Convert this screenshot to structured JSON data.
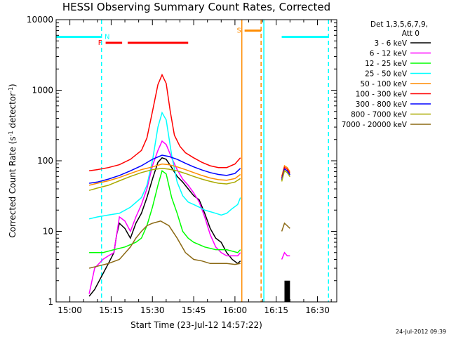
{
  "chart_data": {
    "type": "line",
    "title": "HESSI Observing Summary Count Rates, Corrected",
    "xlabel": "Start Time (23-Jul-12 14:57:22)",
    "ylabel_parts": [
      "Corrected Count Rate (s",
      "-1",
      " detector",
      "-1",
      ")"
    ],
    "x_ticks": [
      "15:00",
      "15:15",
      "15:30",
      "15:45",
      "16:00",
      "16:15",
      "16:30"
    ],
    "x_tick_minutes": [
      0,
      15,
      30,
      45,
      60,
      75,
      90
    ],
    "xlim_minutes": [
      -5,
      97
    ],
    "y_ticks": [
      "10000",
      "1000",
      "100",
      "10",
      "1"
    ],
    "y_tick_values": [
      10000,
      1000,
      100,
      10,
      1
    ],
    "ylim": [
      1,
      10000
    ],
    "yscale": "log",
    "legend_header": [
      "Det 1,3,5,6,7,9,",
      "Att 0"
    ],
    "legend_position": "right",
    "timestamp": "24-Jul-2012 09:39",
    "series": [
      {
        "name": "3 - 6 keV",
        "color": "#000000",
        "points": [
          [
            7,
            1.2
          ],
          [
            9,
            1.5
          ],
          [
            12,
            2.5
          ],
          [
            14,
            3.5
          ],
          [
            16,
            5
          ],
          [
            17,
            9
          ],
          [
            18,
            13
          ],
          [
            20,
            11
          ],
          [
            22,
            8
          ],
          [
            24,
            13
          ],
          [
            26,
            18
          ],
          [
            28,
            30
          ],
          [
            30,
            55
          ],
          [
            32,
            95
          ],
          [
            33.5,
            110
          ],
          [
            35,
            105
          ],
          [
            37,
            80
          ],
          [
            39,
            60
          ],
          [
            41,
            50
          ],
          [
            43,
            40
          ],
          [
            45,
            32
          ],
          [
            47,
            28
          ],
          [
            49,
            18
          ],
          [
            51,
            11
          ],
          [
            53,
            8
          ],
          [
            55,
            7
          ],
          [
            57,
            5
          ],
          [
            59,
            4
          ],
          [
            61,
            3.5
          ],
          [
            62,
            3.8
          ]
        ]
      },
      {
        "name": "6 - 12 keV",
        "color": "#ff00ff",
        "points": [
          [
            7,
            1.3
          ],
          [
            9,
            3
          ],
          [
            12,
            4
          ],
          [
            14,
            4.5
          ],
          [
            16,
            5
          ],
          [
            17,
            9
          ],
          [
            18,
            16
          ],
          [
            20,
            14
          ],
          [
            22,
            10
          ],
          [
            24,
            16
          ],
          [
            26,
            24
          ],
          [
            28,
            40
          ],
          [
            30,
            85
          ],
          [
            32,
            140
          ],
          [
            33.5,
            190
          ],
          [
            35,
            170
          ],
          [
            37,
            110
          ],
          [
            39,
            75
          ],
          [
            41,
            55
          ],
          [
            43,
            45
          ],
          [
            45,
            35
          ],
          [
            47,
            26
          ],
          [
            49,
            16
          ],
          [
            51,
            9
          ],
          [
            53,
            6
          ],
          [
            55,
            5
          ],
          [
            57,
            4.5
          ],
          [
            59,
            4.5
          ],
          [
            61,
            4.5
          ],
          [
            62,
            5
          ]
        ]
      },
      {
        "name": "12 - 25 keV",
        "color": "#00ff00",
        "points": [
          [
            7,
            5
          ],
          [
            12,
            5
          ],
          [
            16,
            5.5
          ],
          [
            20,
            6
          ],
          [
            24,
            7
          ],
          [
            26,
            8
          ],
          [
            28,
            12
          ],
          [
            30,
            22
          ],
          [
            32,
            45
          ],
          [
            33.5,
            72
          ],
          [
            35,
            65
          ],
          [
            37,
            30
          ],
          [
            39,
            18
          ],
          [
            41,
            10
          ],
          [
            43,
            8
          ],
          [
            45,
            7
          ],
          [
            49,
            6
          ],
          [
            53,
            5.5
          ],
          [
            57,
            5.5
          ],
          [
            61,
            5
          ],
          [
            62,
            5.5
          ]
        ]
      },
      {
        "name": "25 - 50 keV",
        "color": "#00ffff",
        "points": [
          [
            7,
            15
          ],
          [
            10,
            16
          ],
          [
            14,
            17
          ],
          [
            18,
            18
          ],
          [
            22,
            22
          ],
          [
            26,
            30
          ],
          [
            28,
            45
          ],
          [
            30,
            100
          ],
          [
            32,
            300
          ],
          [
            33.5,
            480
          ],
          [
            35,
            380
          ],
          [
            37,
            120
          ],
          [
            39,
            50
          ],
          [
            41,
            32
          ],
          [
            43,
            26
          ],
          [
            45,
            24
          ],
          [
            47,
            22
          ],
          [
            49,
            20
          ],
          [
            51,
            19
          ],
          [
            53,
            18
          ],
          [
            55,
            17
          ],
          [
            57,
            18
          ],
          [
            59,
            21
          ],
          [
            61,
            24
          ],
          [
            62,
            30
          ]
        ]
      },
      {
        "name": "50 - 100 keV",
        "color": "#ff8c00",
        "points": [
          [
            7,
            45
          ],
          [
            10,
            48
          ],
          [
            14,
            52
          ],
          [
            18,
            58
          ],
          [
            22,
            66
          ],
          [
            26,
            75
          ],
          [
            30,
            82
          ],
          [
            33.5,
            90
          ],
          [
            36,
            88
          ],
          [
            39,
            82
          ],
          [
            42,
            75
          ],
          [
            45,
            68
          ],
          [
            48,
            62
          ],
          [
            51,
            57
          ],
          [
            54,
            54
          ],
          [
            57,
            53
          ],
          [
            60,
            56
          ],
          [
            62,
            64
          ]
        ]
      },
      {
        "name": "100 - 300 keV",
        "color": "#ff0000",
        "points": [
          [
            7,
            72
          ],
          [
            10,
            75
          ],
          [
            14,
            80
          ],
          [
            18,
            88
          ],
          [
            22,
            105
          ],
          [
            26,
            140
          ],
          [
            28,
            210
          ],
          [
            30,
            500
          ],
          [
            32,
            1200
          ],
          [
            33.5,
            1650
          ],
          [
            35,
            1250
          ],
          [
            36.5,
            500
          ],
          [
            38,
            230
          ],
          [
            40,
            160
          ],
          [
            42,
            130
          ],
          [
            45,
            110
          ],
          [
            48,
            95
          ],
          [
            51,
            85
          ],
          [
            54,
            80
          ],
          [
            57,
            80
          ],
          [
            60,
            90
          ],
          [
            62,
            110
          ]
        ]
      },
      {
        "name": "300 - 800 keV",
        "color": "#0000ff",
        "points": [
          [
            7,
            48
          ],
          [
            10,
            50
          ],
          [
            14,
            55
          ],
          [
            18,
            62
          ],
          [
            22,
            72
          ],
          [
            26,
            85
          ],
          [
            30,
            105
          ],
          [
            33.5,
            120
          ],
          [
            36,
            115
          ],
          [
            39,
            105
          ],
          [
            42,
            92
          ],
          [
            45,
            82
          ],
          [
            48,
            74
          ],
          [
            51,
            68
          ],
          [
            54,
            64
          ],
          [
            57,
            62
          ],
          [
            60,
            66
          ],
          [
            62,
            78
          ]
        ]
      },
      {
        "name": "800 - 7000 keV",
        "color": "#aaaa00",
        "points": [
          [
            7,
            38
          ],
          [
            10,
            41
          ],
          [
            14,
            45
          ],
          [
            18,
            52
          ],
          [
            22,
            60
          ],
          [
            26,
            68
          ],
          [
            30,
            75
          ],
          [
            33.5,
            78
          ],
          [
            36,
            76
          ],
          [
            39,
            72
          ],
          [
            42,
            66
          ],
          [
            45,
            60
          ],
          [
            48,
            55
          ],
          [
            51,
            51
          ],
          [
            54,
            48
          ],
          [
            57,
            47
          ],
          [
            60,
            50
          ],
          [
            62,
            56
          ]
        ]
      },
      {
        "name": "7000 - 20000 keV",
        "color": "#8b6914",
        "points": [
          [
            7,
            3
          ],
          [
            10,
            3.2
          ],
          [
            14,
            3.5
          ],
          [
            18,
            4
          ],
          [
            22,
            6
          ],
          [
            24,
            8
          ],
          [
            26,
            10
          ],
          [
            28,
            12
          ],
          [
            30,
            13
          ],
          [
            33,
            14
          ],
          [
            36,
            12
          ],
          [
            39,
            8
          ],
          [
            42,
            5
          ],
          [
            45,
            4
          ],
          [
            48,
            3.8
          ],
          [
            51,
            3.5
          ],
          [
            54,
            3.5
          ],
          [
            57,
            3.5
          ],
          [
            60,
            3.4
          ],
          [
            62,
            3.5
          ]
        ]
      }
    ],
    "second_segment": {
      "start_minutes": 77,
      "points": [
        [
          77,
          60
        ],
        [
          78,
          85
        ],
        [
          79,
          80
        ],
        [
          80,
          70
        ]
      ],
      "low_values": [
        [
          77,
          10
        ],
        [
          78,
          13
        ],
        [
          79,
          12
        ],
        [
          80,
          11
        ]
      ],
      "bottom_values": [
        [
          77,
          4
        ],
        [
          78,
          5
        ],
        [
          79,
          4.5
        ],
        [
          80,
          4.5
        ]
      ],
      "black_bar_range": [
        78,
        80
      ],
      "black_bar_top": 2
    },
    "flags": [
      {
        "label": "N",
        "color": "#00ffff",
        "type": "night",
        "segments": [
          [
            -5,
            11.5
          ],
          [
            77,
            94
          ]
        ],
        "level": 5700
      },
      {
        "label": "F",
        "color": "#ff0000",
        "type": "flare",
        "segments": [
          [
            13,
            19
          ],
          [
            21,
            43
          ]
        ],
        "level": 4700
      },
      {
        "label": "S",
        "color": "#ff8c00",
        "type": "saa",
        "segments": [
          [
            63.5,
            69.5
          ]
        ],
        "level": 7000
      }
    ],
    "vertical_lines": [
      {
        "x": 11.5,
        "color": "#00ffff",
        "dash": true
      },
      {
        "x": 62.5,
        "color": "#ff8c00",
        "dash": false
      },
      {
        "x": 69.5,
        "color": "#ff8c00",
        "dash": true
      },
      {
        "x": 70.5,
        "color": "#00ffff",
        "dash": false
      },
      {
        "x": 94,
        "color": "#00ffff",
        "dash": true
      }
    ]
  }
}
